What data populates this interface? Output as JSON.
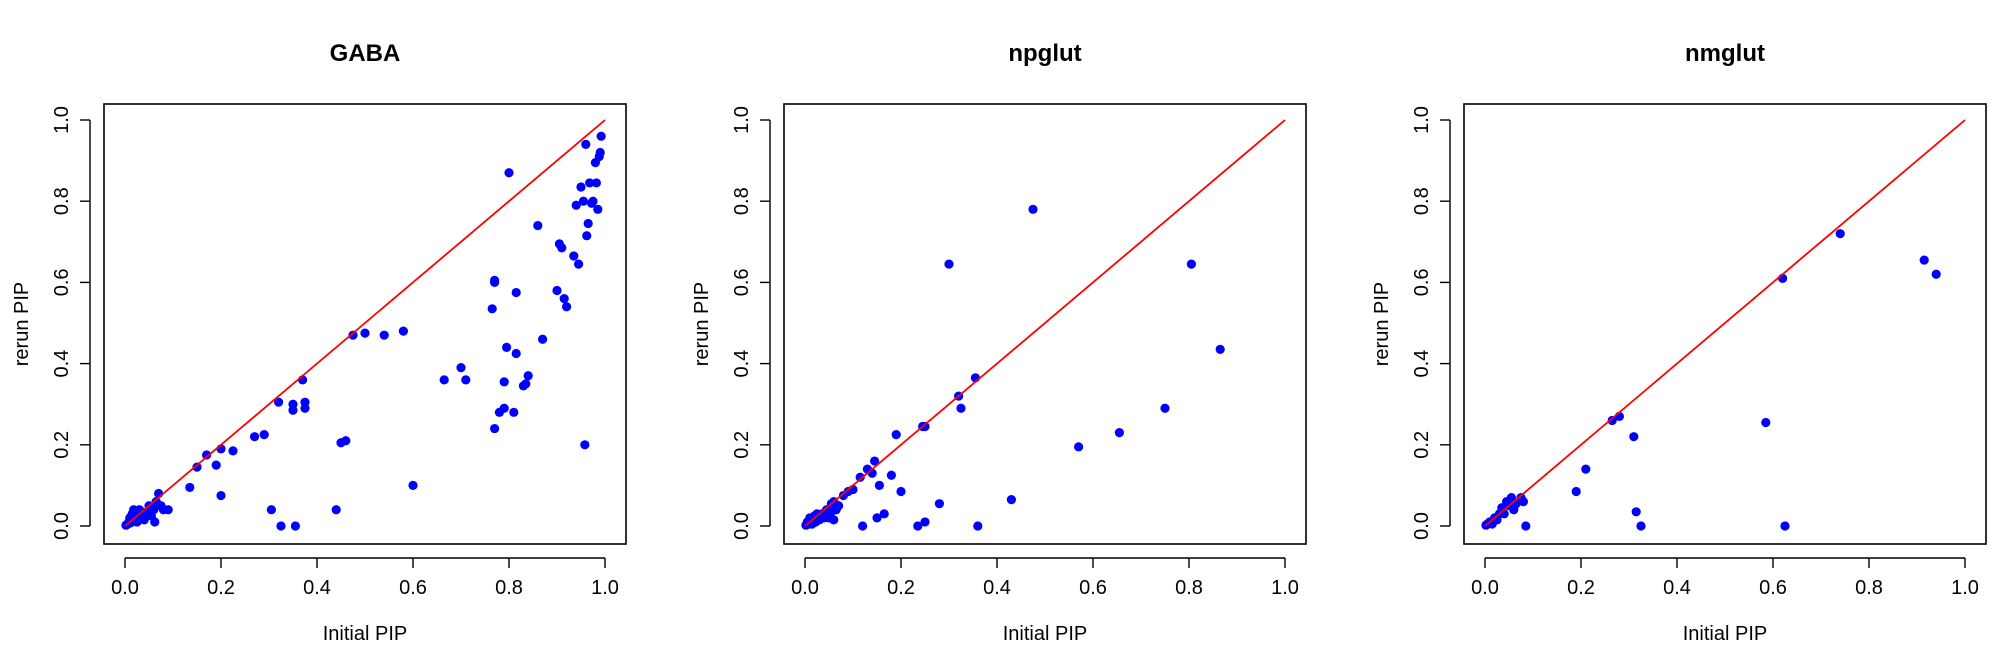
{
  "chart_data": [
    {
      "type": "scatter",
      "title": "GABA",
      "xlabel": "Initial PIP",
      "ylabel": "rerun PIP",
      "xlim": [
        0,
        1
      ],
      "ylim": [
        0,
        1
      ],
      "xticks": [
        "0.0",
        "0.2",
        "0.4",
        "0.6",
        "0.8",
        "1.0"
      ],
      "yticks": [
        "0.0",
        "0.2",
        "0.4",
        "0.6",
        "0.8",
        "1.0"
      ],
      "point_color": "#0000ff",
      "reference_line": {
        "from": [
          0,
          0
        ],
        "to": [
          1,
          1
        ],
        "color": "#ff0000"
      },
      "points": [
        [
          0.002,
          0.002
        ],
        [
          0.005,
          0.004
        ],
        [
          0.008,
          0.01
        ],
        [
          0.01,
          0.02
        ],
        [
          0.012,
          0.008
        ],
        [
          0.015,
          0.03
        ],
        [
          0.018,
          0.04
        ],
        [
          0.02,
          0.015
        ],
        [
          0.022,
          0.03
        ],
        [
          0.025,
          0.01
        ],
        [
          0.028,
          0.025
        ],
        [
          0.03,
          0.04
        ],
        [
          0.032,
          0.02
        ],
        [
          0.035,
          0.035
        ],
        [
          0.04,
          0.015
        ],
        [
          0.045,
          0.03
        ],
        [
          0.05,
          0.05
        ],
        [
          0.055,
          0.025
        ],
        [
          0.06,
          0.04
        ],
        [
          0.062,
          0.01
        ],
        [
          0.065,
          0.06
        ],
        [
          0.07,
          0.08
        ],
        [
          0.075,
          0.05
        ],
        [
          0.08,
          0.04
        ],
        [
          0.09,
          0.04
        ],
        [
          0.135,
          0.095
        ],
        [
          0.15,
          0.145
        ],
        [
          0.17,
          0.175
        ],
        [
          0.19,
          0.15
        ],
        [
          0.2,
          0.19
        ],
        [
          0.2,
          0.075
        ],
        [
          0.225,
          0.185
        ],
        [
          0.27,
          0.22
        ],
        [
          0.29,
          0.225
        ],
        [
          0.305,
          0.04
        ],
        [
          0.32,
          0.305
        ],
        [
          0.325,
          0.0
        ],
        [
          0.35,
          0.3
        ],
        [
          0.35,
          0.285
        ],
        [
          0.355,
          0.0
        ],
        [
          0.37,
          0.36
        ],
        [
          0.375,
          0.305
        ],
        [
          0.375,
          0.29
        ],
        [
          0.44,
          0.04
        ],
        [
          0.45,
          0.205
        ],
        [
          0.46,
          0.21
        ],
        [
          0.475,
          0.47
        ],
        [
          0.5,
          0.475
        ],
        [
          0.54,
          0.47
        ],
        [
          0.58,
          0.48
        ],
        [
          0.6,
          0.1
        ],
        [
          0.665,
          0.36
        ],
        [
          0.7,
          0.39
        ],
        [
          0.71,
          0.36
        ],
        [
          0.765,
          0.535
        ],
        [
          0.77,
          0.605
        ],
        [
          0.77,
          0.6
        ],
        [
          0.77,
          0.24
        ],
        [
          0.78,
          0.28
        ],
        [
          0.79,
          0.29
        ],
        [
          0.79,
          0.355
        ],
        [
          0.795,
          0.44
        ],
        [
          0.8,
          0.87
        ],
        [
          0.81,
          0.28
        ],
        [
          0.815,
          0.575
        ],
        [
          0.815,
          0.425
        ],
        [
          0.83,
          0.345
        ],
        [
          0.835,
          0.35
        ],
        [
          0.84,
          0.37
        ],
        [
          0.86,
          0.74
        ],
        [
          0.87,
          0.46
        ],
        [
          0.9,
          0.58
        ],
        [
          0.905,
          0.695
        ],
        [
          0.91,
          0.685
        ],
        [
          0.915,
          0.56
        ],
        [
          0.92,
          0.54
        ],
        [
          0.935,
          0.665
        ],
        [
          0.94,
          0.79
        ],
        [
          0.945,
          0.645
        ],
        [
          0.95,
          0.835
        ],
        [
          0.955,
          0.8
        ],
        [
          0.958,
          0.2
        ],
        [
          0.96,
          0.94
        ],
        [
          0.962,
          0.715
        ],
        [
          0.965,
          0.745
        ],
        [
          0.968,
          0.845
        ],
        [
          0.972,
          0.795
        ],
        [
          0.975,
          0.8
        ],
        [
          0.98,
          0.895
        ],
        [
          0.982,
          0.845
        ],
        [
          0.985,
          0.78
        ],
        [
          0.988,
          0.91
        ],
        [
          0.99,
          0.92
        ],
        [
          0.992,
          0.96
        ]
      ]
    },
    {
      "type": "scatter",
      "title": "npglut",
      "xlabel": "Initial PIP",
      "ylabel": "rerun PIP",
      "xlim": [
        0,
        1
      ],
      "ylim": [
        0,
        1
      ],
      "xticks": [
        "0.0",
        "0.2",
        "0.4",
        "0.6",
        "0.8",
        "1.0"
      ],
      "yticks": [
        "0.0",
        "0.2",
        "0.4",
        "0.6",
        "0.8",
        "1.0"
      ],
      "point_color": "#0000ff",
      "reference_line": {
        "from": [
          0,
          0
        ],
        "to": [
          1,
          1
        ],
        "color": "#ff0000"
      },
      "points": [
        [
          0.002,
          0.002
        ],
        [
          0.005,
          0.01
        ],
        [
          0.008,
          0.005
        ],
        [
          0.01,
          0.02
        ],
        [
          0.015,
          0.005
        ],
        [
          0.02,
          0.025
        ],
        [
          0.022,
          0.01
        ],
        [
          0.025,
          0.03
        ],
        [
          0.03,
          0.015
        ],
        [
          0.035,
          0.03
        ],
        [
          0.04,
          0.02
        ],
        [
          0.045,
          0.04
        ],
        [
          0.05,
          0.02
        ],
        [
          0.055,
          0.035
        ],
        [
          0.06,
          0.06
        ],
        [
          0.065,
          0.04
        ],
        [
          0.07,
          0.05
        ],
        [
          0.06,
          0.015
        ],
        [
          0.055,
          0.055
        ],
        [
          0.08,
          0.075
        ],
        [
          0.09,
          0.085
        ],
        [
          0.1,
          0.09
        ],
        [
          0.115,
          0.12
        ],
        [
          0.12,
          0.0
        ],
        [
          0.13,
          0.14
        ],
        [
          0.14,
          0.13
        ],
        [
          0.145,
          0.16
        ],
        [
          0.15,
          0.02
        ],
        [
          0.155,
          0.1
        ],
        [
          0.165,
          0.03
        ],
        [
          0.18,
          0.125
        ],
        [
          0.19,
          0.225
        ],
        [
          0.2,
          0.085
        ],
        [
          0.235,
          0.0
        ],
        [
          0.245,
          0.245
        ],
        [
          0.25,
          0.01
        ],
        [
          0.25,
          0.245
        ],
        [
          0.28,
          0.055
        ],
        [
          0.3,
          0.645
        ],
        [
          0.32,
          0.32
        ],
        [
          0.325,
          0.29
        ],
        [
          0.355,
          0.365
        ],
        [
          0.36,
          0.0
        ],
        [
          0.43,
          0.065
        ],
        [
          0.475,
          0.78
        ],
        [
          0.57,
          0.195
        ],
        [
          0.655,
          0.23
        ],
        [
          0.75,
          0.29
        ],
        [
          0.805,
          0.645
        ],
        [
          0.865,
          0.435
        ]
      ]
    },
    {
      "type": "scatter",
      "title": "nmglut",
      "xlabel": "Initial PIP",
      "ylabel": "rerun PIP",
      "xlim": [
        0,
        1
      ],
      "ylim": [
        0,
        1
      ],
      "xticks": [
        "0.0",
        "0.2",
        "0.4",
        "0.6",
        "0.8",
        "1.0"
      ],
      "yticks": [
        "0.0",
        "0.2",
        "0.4",
        "0.6",
        "0.8",
        "1.0"
      ],
      "point_color": "#0000ff",
      "reference_line": {
        "from": [
          0,
          0
        ],
        "to": [
          1,
          1
        ],
        "color": "#ff0000"
      },
      "points": [
        [
          0.002,
          0.002
        ],
        [
          0.005,
          0.005
        ],
        [
          0.01,
          0.01
        ],
        [
          0.015,
          0.005
        ],
        [
          0.02,
          0.02
        ],
        [
          0.025,
          0.015
        ],
        [
          0.03,
          0.03
        ],
        [
          0.035,
          0.045
        ],
        [
          0.04,
          0.03
        ],
        [
          0.045,
          0.06
        ],
        [
          0.05,
          0.05
        ],
        [
          0.055,
          0.07
        ],
        [
          0.06,
          0.04
        ],
        [
          0.065,
          0.055
        ],
        [
          0.075,
          0.07
        ],
        [
          0.08,
          0.06
        ],
        [
          0.085,
          0.0
        ],
        [
          0.19,
          0.085
        ],
        [
          0.21,
          0.14
        ],
        [
          0.265,
          0.26
        ],
        [
          0.28,
          0.27
        ],
        [
          0.31,
          0.22
        ],
        [
          0.315,
          0.035
        ],
        [
          0.325,
          0.0
        ],
        [
          0.585,
          0.255
        ],
        [
          0.62,
          0.61
        ],
        [
          0.625,
          0.0
        ],
        [
          0.74,
          0.72
        ],
        [
          0.915,
          0.655
        ],
        [
          0.94,
          0.62
        ]
      ]
    }
  ]
}
